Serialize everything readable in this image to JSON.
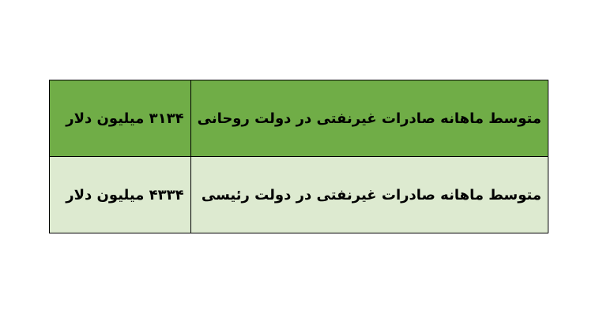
{
  "colors": {
    "header_row": "#70AD47",
    "body_row": "#DDEAD0",
    "border": "#000000"
  },
  "rows": [
    {
      "label": "متوسط ماهانه صادرات غیرنفتی در دولت روحانی",
      "value": "۳۱۳۴ میلیون دلار"
    },
    {
      "label": "متوسط ماهانه صادرات غیرنفتی در دولت رئیسی",
      "value": "۴۳۳۴ میلیون دلار"
    }
  ]
}
